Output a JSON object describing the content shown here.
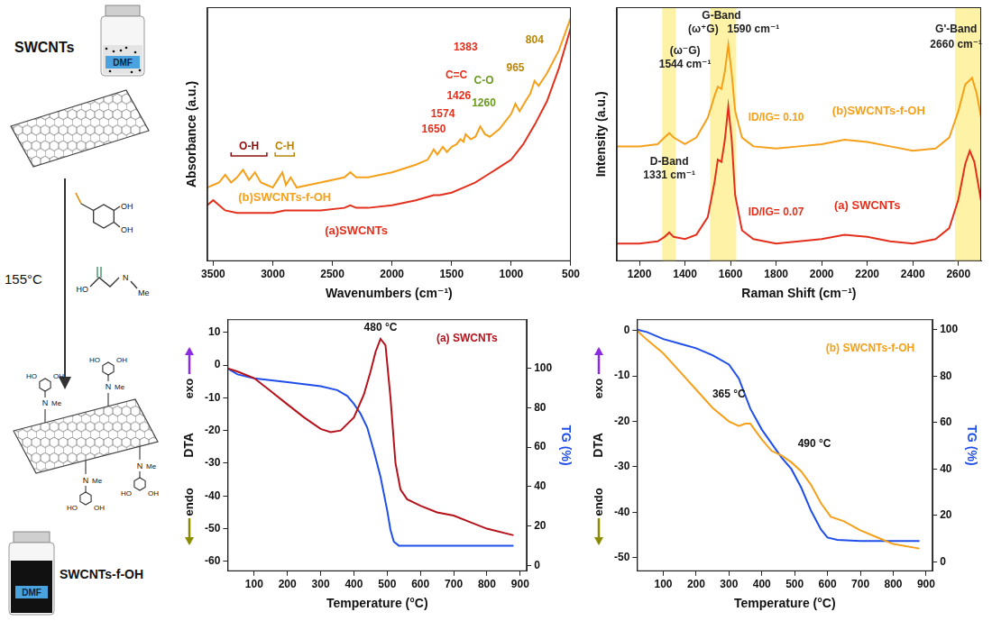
{
  "scheme": {
    "top_label": "SWCNTs",
    "solvent": "DMF",
    "temperature": "155°C",
    "bottom_label": "SWCNTs-f-OH",
    "reagent_labels": [
      "OH",
      "OH",
      "HO",
      "N",
      "Me"
    ],
    "product_labels": [
      "HO",
      "OH",
      "N",
      "Me"
    ]
  },
  "chart_data": [
    {
      "type": "line",
      "xlabel": "Wavenumbers (cm⁻¹)",
      "ylabel": "Absorbance (a.u.)",
      "xlim": [
        3550,
        500
      ],
      "xticks": [
        3500,
        3000,
        2500,
        2000,
        1500,
        1000,
        500
      ],
      "ylim": [
        0,
        1
      ],
      "tick_labels": "x",
      "grid": false,
      "series": [
        {
          "name": "(a)SWCNTs",
          "color": "#e3301c",
          "name_at": [
            2300,
            0.12
          ],
          "x": [
            3550,
            3500,
            3450,
            3400,
            3300,
            3200,
            3100,
            3000,
            2900,
            2800,
            2600,
            2400,
            2350,
            2300,
            2200,
            2000,
            1800,
            1650,
            1600,
            1500,
            1400,
            1300,
            1200,
            1100,
            1000,
            900,
            800,
            700,
            600,
            500
          ],
          "values": [
            0.22,
            0.24,
            0.22,
            0.2,
            0.19,
            0.19,
            0.19,
            0.19,
            0.2,
            0.2,
            0.2,
            0.21,
            0.22,
            0.21,
            0.21,
            0.22,
            0.24,
            0.26,
            0.26,
            0.27,
            0.29,
            0.31,
            0.34,
            0.37,
            0.4,
            0.46,
            0.54,
            0.63,
            0.76,
            0.92
          ]
        },
        {
          "name": "(b)SWCNTs-f-OH",
          "color": "#f5a01a",
          "name_at": [
            2900,
            0.25
          ],
          "x": [
            3550,
            3500,
            3450,
            3400,
            3350,
            3300,
            3250,
            3200,
            3150,
            3100,
            3050,
            3000,
            2960,
            2920,
            2890,
            2850,
            2800,
            2600,
            2400,
            2350,
            2300,
            2200,
            2000,
            1800,
            1700,
            1650,
            1620,
            1574,
            1540,
            1500,
            1460,
            1426,
            1400,
            1383,
            1340,
            1300,
            1260,
            1220,
            1180,
            1100,
            1050,
            1000,
            965,
            930,
            880,
            840,
            804,
            770,
            700,
            600,
            500
          ],
          "values": [
            0.29,
            0.3,
            0.31,
            0.34,
            0.31,
            0.33,
            0.36,
            0.32,
            0.35,
            0.31,
            0.3,
            0.29,
            0.32,
            0.35,
            0.3,
            0.33,
            0.29,
            0.31,
            0.33,
            0.35,
            0.33,
            0.33,
            0.35,
            0.38,
            0.4,
            0.44,
            0.42,
            0.45,
            0.43,
            0.45,
            0.46,
            0.48,
            0.47,
            0.5,
            0.48,
            0.49,
            0.53,
            0.5,
            0.49,
            0.52,
            0.55,
            0.58,
            0.62,
            0.59,
            0.63,
            0.66,
            0.71,
            0.69,
            0.74,
            0.83,
            0.96
          ]
        }
      ],
      "annotations": [
        {
          "text": "O-H",
          "x": [
            3350,
            3050
          ],
          "y": 0.45,
          "color": "#8b1010"
        },
        {
          "text": "C-H",
          "x": [
            2980,
            2820
          ],
          "y": 0.45,
          "color": "#b8860b"
        },
        {
          "text": "C=C",
          "x": 1460,
          "y": 0.73,
          "color": "#e3301c"
        },
        {
          "text": "1650",
          "x": 1650,
          "y": 0.52,
          "color": "#e3301c"
        },
        {
          "text": "1574",
          "x": 1574,
          "y": 0.58,
          "color": "#e3301c"
        },
        {
          "text": "1426",
          "x": 1440,
          "y": 0.65,
          "color": "#e3301c"
        },
        {
          "text": "1383",
          "x": 1383,
          "y": 0.84,
          "color": "#e3301c"
        },
        {
          "text": "C-O",
          "x": 1230,
          "y": 0.71,
          "color": "#6a9a1f"
        },
        {
          "text": "1260",
          "x": 1230,
          "y": 0.62,
          "color": "#6a9a1f"
        },
        {
          "text": "965",
          "x": 965,
          "y": 0.76,
          "color": "#b8860b"
        },
        {
          "text": "804",
          "x": 804,
          "y": 0.87,
          "color": "#b8860b"
        }
      ]
    },
    {
      "type": "line",
      "xlabel": "Raman Shift (cm⁻¹)",
      "ylabel": "Intensity (a.u.)",
      "xlim": [
        1100,
        2700
      ],
      "xticks": [
        1200,
        1400,
        1600,
        1800,
        2000,
        2200,
        2400,
        2600
      ],
      "ylim": [
        0,
        1.15
      ],
      "tick_labels": "x",
      "grid": false,
      "bands": [
        {
          "x": [
            1300,
            1360
          ],
          "color": "#fdf2a6"
        },
        {
          "x": [
            1510,
            1625
          ],
          "color": "#fdf2a6"
        },
        {
          "x": [
            2585,
            2700
          ],
          "color": "#fdf2a6"
        }
      ],
      "series": [
        {
          "name": "(a) SWCNTs",
          "color": "#e3301c",
          "name_at": [
            2200,
            0.25
          ],
          "x": [
            1100,
            1200,
            1280,
            1310,
            1331,
            1350,
            1400,
            1450,
            1500,
            1530,
            1544,
            1560,
            1575,
            1590,
            1605,
            1620,
            1650,
            1700,
            1800,
            1900,
            2000,
            2100,
            2200,
            2300,
            2400,
            2500,
            2560,
            2600,
            2630,
            2650,
            2670,
            2690,
            2700
          ],
          "values": [
            0.08,
            0.08,
            0.09,
            0.11,
            0.13,
            0.11,
            0.1,
            0.12,
            0.2,
            0.36,
            0.46,
            0.45,
            0.55,
            0.7,
            0.55,
            0.3,
            0.14,
            0.1,
            0.08,
            0.09,
            0.1,
            0.12,
            0.11,
            0.09,
            0.08,
            0.1,
            0.15,
            0.28,
            0.44,
            0.5,
            0.45,
            0.33,
            0.27
          ]
        },
        {
          "name": "(b)SWCNTs-f-OH",
          "color": "#f5a01a",
          "name_at": [
            2250,
            0.68
          ],
          "x": [
            1100,
            1200,
            1280,
            1310,
            1331,
            1350,
            1400,
            1450,
            1500,
            1530,
            1544,
            1560,
            1575,
            1590,
            1605,
            1620,
            1650,
            1700,
            1800,
            1900,
            2000,
            2100,
            2200,
            2300,
            2400,
            2500,
            2560,
            2600,
            2630,
            2660,
            2680,
            2700
          ],
          "values": [
            0.52,
            0.52,
            0.53,
            0.56,
            0.58,
            0.56,
            0.53,
            0.56,
            0.65,
            0.75,
            0.79,
            0.78,
            0.86,
            0.98,
            0.85,
            0.68,
            0.56,
            0.52,
            0.51,
            0.52,
            0.53,
            0.55,
            0.54,
            0.52,
            0.5,
            0.51,
            0.56,
            0.68,
            0.8,
            0.83,
            0.76,
            0.65
          ]
        }
      ],
      "annotations": [
        {
          "text": "D-Band",
          "x": 1331,
          "y": 0.45,
          "color": "#222222"
        },
        {
          "text": "1331 cm⁻¹",
          "x": 1331,
          "y": 0.39,
          "color": "#222222"
        },
        {
          "text": "G-Band",
          "x": 1560,
          "y": 1.11,
          "color": "#222222"
        },
        {
          "text": "(ω⁺G)",
          "x": 1480,
          "y": 1.05,
          "color": "#222222"
        },
        {
          "text": "1590 cm⁻¹",
          "x": 1700,
          "y": 1.05,
          "color": "#222222"
        },
        {
          "text": "(ω⁻G)",
          "x": 1400,
          "y": 0.95,
          "color": "#222222"
        },
        {
          "text": "1544 cm⁻¹",
          "x": 1400,
          "y": 0.89,
          "color": "#222222"
        },
        {
          "text": "G'-Band",
          "x": 2590,
          "y": 1.05,
          "color": "#222222"
        },
        {
          "text": "2660 cm⁻¹",
          "x": 2590,
          "y": 0.98,
          "color": "#222222"
        },
        {
          "text": "ID/IG= 0.10",
          "x": 1800,
          "y": 0.65,
          "color": "#f5a01a"
        },
        {
          "text": "ID/IG= 0.07",
          "x": 1800,
          "y": 0.22,
          "color": "#e3301c"
        }
      ]
    },
    {
      "type": "line",
      "xlabel": "Temperature (°C)",
      "ylabel": "DTA",
      "y2label": "TG (%)",
      "exo_label": "exo",
      "endo_label": "endo",
      "xlim": [
        20,
        920
      ],
      "xticks": [
        100,
        200,
        300,
        400,
        500,
        600,
        700,
        800,
        900
      ],
      "ylim": [
        -63,
        14
      ],
      "yticks": [
        -60,
        -50,
        -40,
        -30,
        -20,
        -10,
        0,
        10
      ],
      "y2lim": [
        -3,
        125
      ],
      "y2ticks": [
        0,
        20,
        40,
        60,
        80,
        100
      ],
      "grid": false,
      "series": [
        {
          "name": "DTA",
          "color": "#b5121b",
          "x": [
            20,
            50,
            100,
            150,
            200,
            250,
            300,
            330,
            360,
            400,
            430,
            450,
            465,
            480,
            495,
            510,
            525,
            540,
            560,
            600,
            650,
            700,
            750,
            800,
            880
          ],
          "values": [
            -1,
            -2,
            -4,
            -8,
            -12,
            -16,
            -19.5,
            -20.5,
            -20,
            -16,
            -9,
            -2,
            4,
            8,
            6,
            -10,
            -30,
            -38,
            -41,
            -43,
            -45,
            -46,
            -48,
            -50,
            -52
          ]
        },
        {
          "name": "TG",
          "color": "#1f4fe8",
          "axis": "y2",
          "x": [
            20,
            50,
            100,
            200,
            300,
            350,
            380,
            400,
            420,
            440,
            460,
            480,
            500,
            510,
            520,
            535,
            560,
            880
          ],
          "values": [
            100,
            97,
            95,
            93,
            91,
            89,
            86,
            82,
            77,
            70,
            58,
            45,
            28,
            18,
            12,
            10,
            10,
            10
          ]
        }
      ],
      "annotations": [
        {
          "text": "480 °C",
          "x": 480,
          "y": 11.5,
          "color": "#111111"
        },
        {
          "text": "(a) SWCNTs",
          "x": 740,
          "y": 8,
          "color": "#b5121b"
        }
      ]
    },
    {
      "type": "line",
      "xlabel": "Temperature (°C)",
      "ylabel": "DTA",
      "y2label": "TG (%)",
      "exo_label": "exo",
      "endo_label": "endo",
      "xlim": [
        20,
        920
      ],
      "xticks": [
        100,
        200,
        300,
        400,
        500,
        600,
        700,
        800,
        900
      ],
      "ylim": [
        -53,
        2.5
      ],
      "yticks": [
        -50,
        -40,
        -30,
        -20,
        -10,
        0
      ],
      "y2lim": [
        -4,
        104.5
      ],
      "y2ticks": [
        0,
        20,
        40,
        60,
        80,
        100
      ],
      "grid": false,
      "series": [
        {
          "name": "DTA",
          "color": "#f5a01a",
          "x": [
            20,
            50,
            100,
            150,
            200,
            250,
            300,
            330,
            350,
            365,
            400,
            430,
            460,
            490,
            520,
            550,
            580,
            610,
            650,
            700,
            750,
            800,
            880
          ],
          "values": [
            0,
            -2,
            -5,
            -9,
            -13,
            -17,
            -20,
            -21,
            -20.5,
            -20.5,
            -24,
            -26.5,
            -27.5,
            -29,
            -31,
            -34,
            -38,
            -41,
            -42,
            -44,
            -45.5,
            -47,
            -48
          ]
        },
        {
          "name": "TG",
          "color": "#1f4fe8",
          "axis": "y2",
          "x": [
            20,
            50,
            100,
            150,
            200,
            250,
            300,
            330,
            365,
            400,
            430,
            460,
            490,
            520,
            550,
            580,
            600,
            630,
            700,
            880
          ],
          "values": [
            100,
            99,
            96,
            94,
            92,
            89,
            85,
            79,
            66,
            57,
            51,
            45,
            40,
            32,
            22,
            14,
            10.5,
            9.5,
            9,
            9
          ]
        }
      ],
      "annotations": [
        {
          "text": "365 °C",
          "x": 300,
          "y": -14,
          "color": "#111111"
        },
        {
          "text": "490 °C",
          "x": 560,
          "y": -25,
          "color": "#111111"
        },
        {
          "text": "(b) SWCNTs-f-OH",
          "x": 730,
          "y": -4,
          "color": "#f5a01a"
        }
      ]
    }
  ]
}
